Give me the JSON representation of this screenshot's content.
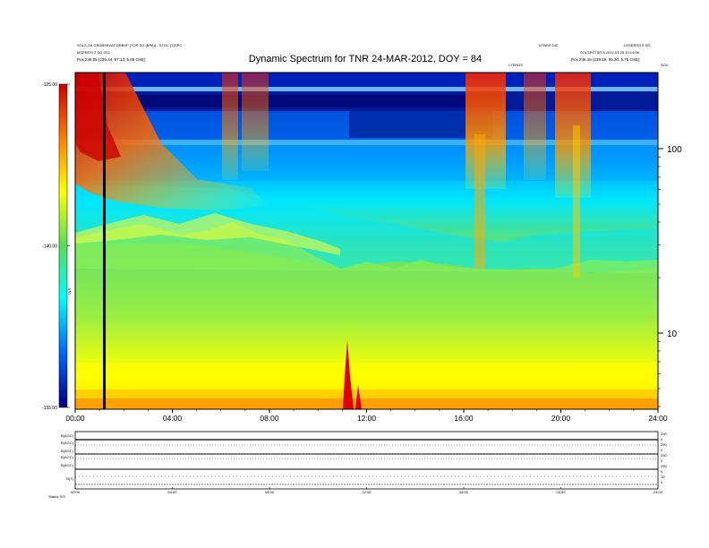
{
  "chart_data": {
    "type": "heatmap",
    "title": "Dynamic Spectrum for TNR 24-MAR-2012, DOY = 84",
    "colorbar": {
      "ticks": [
        "-125.00",
        "-140.00",
        "-155.00"
      ],
      "label": "TNR",
      "range": [
        -155,
        -125
      ]
    },
    "x_ticks": [
      "00:00",
      "04:00",
      "08:00",
      "12:00",
      "16:00",
      "20:00",
      "24:00"
    ],
    "y_ticks_right": [
      "100",
      "10"
    ],
    "y_scale": "log",
    "x_range_hours": [
      0,
      24
    ],
    "marker_hour": 1.2,
    "small_labels": {
      "top_left_1": "SOLS-G8 GSOBSRVAT ORBSP (TOR SO (BPA)) - STOC (T)SPC",
      "top_left_2": "MSPRESI 2 SO SS2",
      "top_left_3": "Pos      246.05 (235.44, 97.13, 5.09 GSE)",
      "top_mid": "LYERGS",
      "top_right_a": "NTBRS 240",
      "top_right_b": "LDSERSO 8 SO",
      "top_right_c": "SOLSPCTSR 8 2012-03-25 10:14:08",
      "top_right_d": "Pos      246.16 (239.59, 95.30, 5.75 GSE)",
      "top_right_e": "SO2"
    },
    "lower_panel": {
      "left_labels": [
        "B(AGC)",
        "B(AGC)",
        "B(AGC)",
        "B(AGC)",
        "B(AGC)",
        "B(T)"
      ],
      "right_labels": [
        "250",
        "0",
        "250",
        "0",
        "250",
        "0",
        "250",
        "0",
        "10",
        "0"
      ],
      "x_ticks": [
        "00:00",
        "04:00",
        "08:00",
        "12:00",
        "16:00",
        "20:00",
        "24:00"
      ],
      "footer": "Status  S/S"
    },
    "colors": {
      "background": "#ffffff",
      "deep": "#00008b",
      "blue": "#0044ff",
      "cyan": "#00e0ff",
      "green": "#66e066",
      "yellow": "#ffff00",
      "orange": "#ff9900",
      "red": "#e00000"
    }
  }
}
